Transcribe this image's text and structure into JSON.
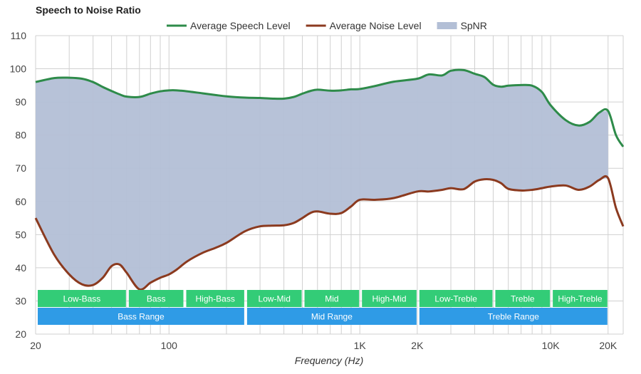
{
  "chart_data": {
    "type": "line",
    "title": "Speech to Noise Ratio",
    "xlabel": "Frequency (Hz)",
    "ylabel": "",
    "x_scale": "log",
    "xlim": [
      20,
      24000
    ],
    "ylim": [
      20,
      110
    ],
    "grid": true,
    "legend_position": "top-center",
    "y_ticks": [
      20,
      30,
      40,
      50,
      60,
      70,
      80,
      90,
      100,
      110
    ],
    "x_tick_labels": [
      {
        "value": 20,
        "label": "20"
      },
      {
        "value": 100,
        "label": "100"
      },
      {
        "value": 1000,
        "label": "1K"
      },
      {
        "value": 2000,
        "label": "2K"
      },
      {
        "value": 10000,
        "label": "10K"
      },
      {
        "value": 20000,
        "label": "20K"
      }
    ],
    "series": [
      {
        "name": "Average Speech Level",
        "color": "#2e8b4a",
        "x": [
          20,
          25,
          30,
          35,
          40,
          45,
          50,
          55,
          60,
          70,
          80,
          90,
          100,
          110,
          125,
          150,
          175,
          200,
          250,
          300,
          350,
          400,
          450,
          500,
          550,
          600,
          700,
          800,
          900,
          1000,
          1200,
          1500,
          2000,
          2300,
          2700,
          3000,
          3500,
          4000,
          4500,
          5000,
          5500,
          6000,
          7000,
          8000,
          9000,
          10000,
          12000,
          14000,
          16000,
          18000,
          20000,
          22000,
          24000
        ],
        "y": [
          96,
          97.2,
          97.3,
          97,
          96,
          94.5,
          93.3,
          92.3,
          91.6,
          91.5,
          92.5,
          93.2,
          93.5,
          93.5,
          93.2,
          92.6,
          92.1,
          91.7,
          91.3,
          91.2,
          91.0,
          91.0,
          91.5,
          92.5,
          93.3,
          93.7,
          93.4,
          93.5,
          93.8,
          93.9,
          94.8,
          96.1,
          97.0,
          98.3,
          98.0,
          99.4,
          99.6,
          98.5,
          97.5,
          95.2,
          94.6,
          94.9,
          95.1,
          94.9,
          93.0,
          89.0,
          84.5,
          82.9,
          84.0,
          86.8,
          87.3,
          80.0,
          76.5
        ]
      },
      {
        "name": "Average Noise Level",
        "color": "#8b3a1f",
        "x": [
          20,
          25,
          30,
          35,
          40,
          45,
          50,
          55,
          60,
          70,
          80,
          90,
          100,
          110,
          125,
          150,
          175,
          200,
          250,
          300,
          350,
          400,
          450,
          500,
          550,
          600,
          700,
          800,
          900,
          1000,
          1200,
          1500,
          2000,
          2300,
          2700,
          3000,
          3500,
          4000,
          4500,
          5000,
          5500,
          6000,
          7000,
          8000,
          9000,
          10000,
          12000,
          14000,
          16000,
          18000,
          20000,
          22000,
          24000
        ],
        "y": [
          55,
          44,
          38,
          35,
          34.8,
          37,
          40.5,
          41,
          38.5,
          33.5,
          35.5,
          37,
          38,
          39.5,
          42,
          44.5,
          46,
          47.5,
          51,
          52.5,
          52.7,
          52.8,
          53.5,
          55,
          56.5,
          57,
          56.3,
          56.5,
          58.5,
          60.5,
          60.5,
          61,
          63,
          63,
          63.5,
          64,
          63.7,
          66,
          66.7,
          66.5,
          65.5,
          63.8,
          63.3,
          63.5,
          64,
          64.5,
          64.8,
          63.5,
          64.5,
          66.5,
          67,
          58,
          52.5
        ]
      }
    ],
    "areas": [
      {
        "name": "SpNR",
        "color": "#b3bfd6",
        "x_range": [
          20,
          20000
        ],
        "between": [
          "Average Noise Level",
          "Average Speech Level"
        ]
      }
    ],
    "range_bands": {
      "upper": [
        {
          "label": "Low-Bass",
          "from": 20,
          "to": 60
        },
        {
          "label": "Bass",
          "from": 60,
          "to": 120
        },
        {
          "label": "High-Bass",
          "from": 120,
          "to": 250
        },
        {
          "label": "Low-Mid",
          "from": 250,
          "to": 500
        },
        {
          "label": "Mid",
          "from": 500,
          "to": 1000
        },
        {
          "label": "High-Mid",
          "from": 1000,
          "to": 2000
        },
        {
          "label": "Low-Treble",
          "from": 2000,
          "to": 5000
        },
        {
          "label": "Treble",
          "from": 5000,
          "to": 10000
        },
        {
          "label": "High-Treble",
          "from": 10000,
          "to": 20000
        }
      ],
      "lower": [
        {
          "label": "Bass Range",
          "from": 20,
          "to": 250
        },
        {
          "label": "Mid Range",
          "from": 250,
          "to": 2000
        },
        {
          "label": "Treble Range",
          "from": 2000,
          "to": 20000
        }
      ],
      "upper_color": "#33cc77",
      "lower_color": "#2f9be6"
    }
  }
}
